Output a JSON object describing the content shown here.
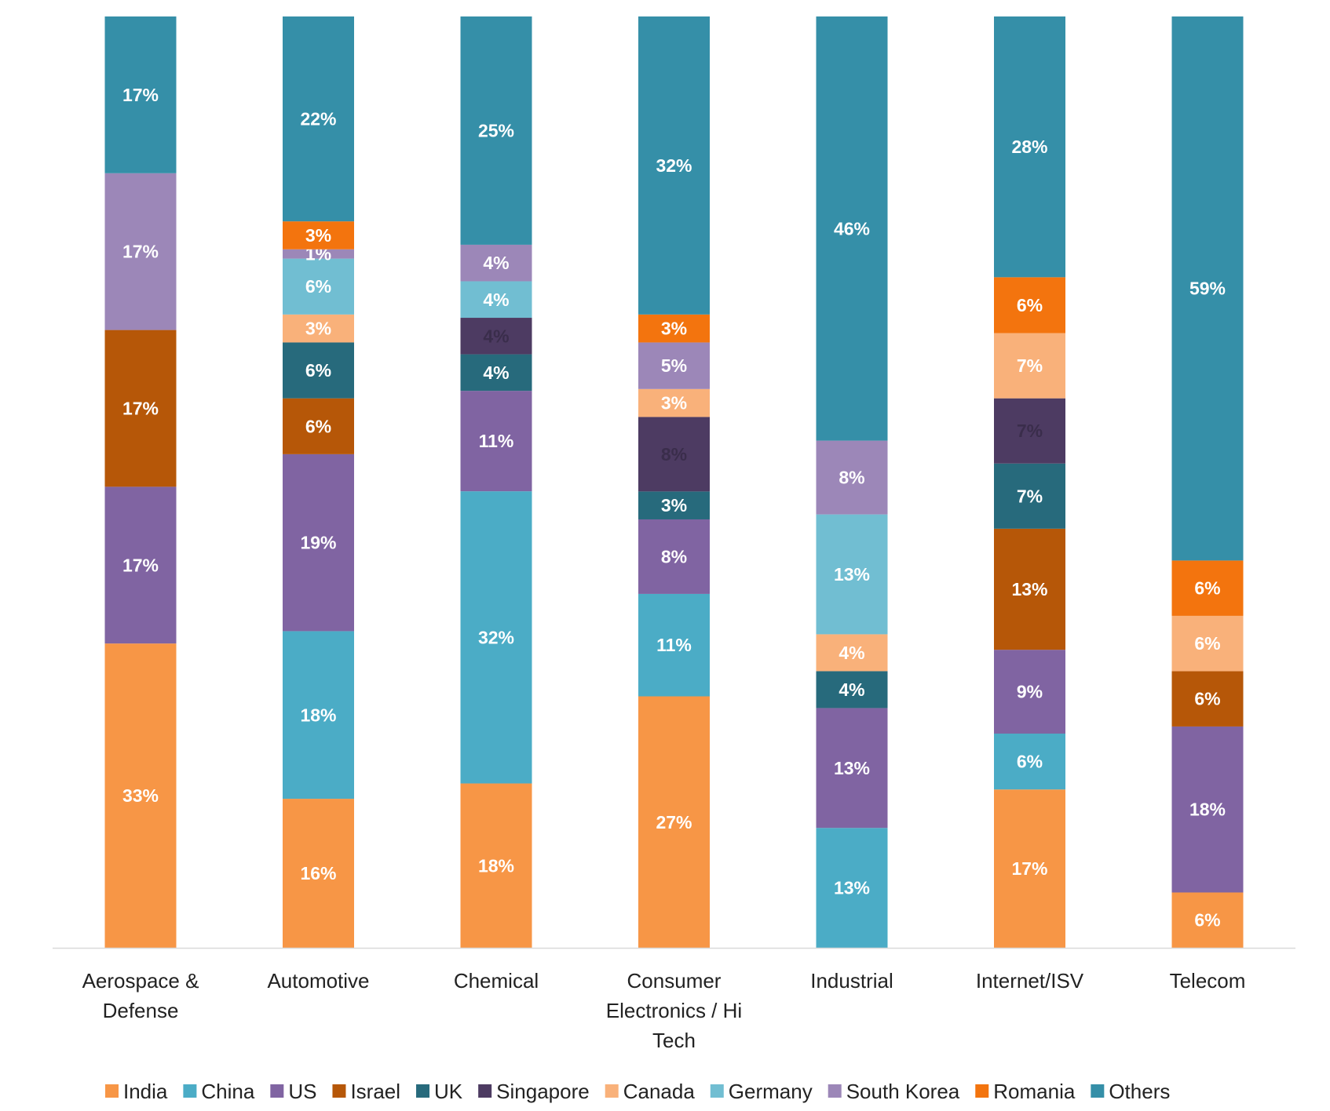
{
  "chart_data": {
    "type": "bar",
    "stacked": true,
    "normalized": true,
    "title": "",
    "xlabel": "",
    "ylabel": "",
    "ylim": [
      0,
      100
    ],
    "grid": false,
    "legend": "bottom",
    "categories": [
      [
        "Aerospace &",
        "Defense"
      ],
      [
        "Automotive"
      ],
      [
        "Chemical"
      ],
      [
        "Consumer",
        "Electronics / Hi",
        "Tech"
      ],
      [
        "Industrial"
      ],
      [
        "Internet/ISV"
      ],
      [
        "Telecom"
      ]
    ],
    "series": [
      {
        "name": "India",
        "color": "#F79646",
        "label_color": "#FFFFFF",
        "values": [
          33,
          16,
          18,
          27,
          0,
          17,
          6
        ],
        "labels": [
          "33%",
          "16%",
          "18%",
          "27%",
          "",
          "17%",
          "6%"
        ]
      },
      {
        "name": "China",
        "color": "#4BACC6",
        "label_color": "#FFFFFF",
        "values": [
          0,
          18,
          32,
          11,
          13,
          6,
          0
        ],
        "labels": [
          "",
          "18%",
          "32%",
          "11%",
          "13%",
          "6%",
          ""
        ]
      },
      {
        "name": "US",
        "color": "#8064A2",
        "label_color": "#FFFFFF",
        "values": [
          17,
          19,
          11,
          8,
          13,
          9,
          18
        ],
        "labels": [
          "17%",
          "19%",
          "11%",
          "8%",
          "13%",
          "9%",
          "18%"
        ]
      },
      {
        "name": "Israel",
        "color": "#B65708",
        "label_color": "#FFFFFF",
        "values": [
          17,
          6,
          0,
          0,
          0,
          13,
          6
        ],
        "labels": [
          "17%",
          "6%",
          "",
          "",
          "",
          "13%",
          "6%"
        ]
      },
      {
        "name": "UK",
        "color": "#276A7C",
        "label_color": "#FFFFFF",
        "values": [
          0,
          6,
          4,
          3,
          4,
          7,
          0
        ],
        "labels": [
          "",
          "6%",
          "4%",
          "3%",
          "4%",
          "7%",
          ""
        ]
      },
      {
        "name": "Singapore",
        "color": "#4D3B62",
        "label_color": "#3A2D4B",
        "values": [
          0,
          0,
          4,
          8,
          0,
          7,
          0
        ],
        "labels": [
          "",
          "",
          "4%",
          "8%",
          "",
          "7%",
          ""
        ]
      },
      {
        "name": "Canada",
        "color": "#F9B17A",
        "label_color": "#FFFFFF",
        "values": [
          0,
          3,
          0,
          3,
          4,
          7,
          6
        ],
        "labels": [
          "",
          "3%",
          "",
          "3%",
          "4%",
          "7%",
          "6%"
        ]
      },
      {
        "name": "Germany",
        "color": "#71BED2",
        "label_color": "#FFFFFF",
        "values": [
          0,
          6,
          4,
          0,
          13,
          0,
          0
        ],
        "labels": [
          "",
          "6%",
          "4%",
          "",
          "13%",
          "",
          ""
        ]
      },
      {
        "name": "South Korea",
        "color": "#9C87B8",
        "label_color": "#FFFFFF",
        "values": [
          17,
          1,
          4,
          5,
          8,
          0,
          0
        ],
        "labels": [
          "17%",
          "1%",
          "4%",
          "5%",
          "8%",
          "",
          ""
        ]
      },
      {
        "name": "Romania",
        "color": "#F3740E",
        "label_color": "#FFFFFF",
        "values": [
          0,
          3,
          0,
          3,
          0,
          6,
          6
        ],
        "labels": [
          "",
          "3%",
          "",
          "3%",
          "",
          "6%",
          "6%"
        ]
      },
      {
        "name": "Others",
        "color": "#358FA8",
        "label_color": "#FFFFFF",
        "values": [
          17,
          22,
          25,
          32,
          46,
          28,
          59
        ],
        "labels": [
          "17%",
          "22%",
          "25%",
          "32%",
          "46%",
          "28%",
          "59%"
        ]
      }
    ]
  }
}
